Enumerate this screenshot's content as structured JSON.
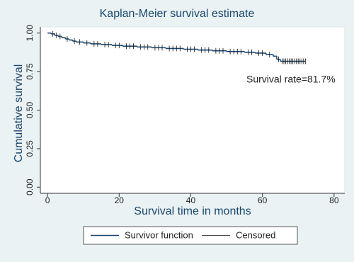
{
  "chart_data": {
    "type": "step",
    "title": "Kaplan-Meier survival estimate",
    "x_label": "Survival time in months",
    "y_label": "Cumulative survival",
    "annotation": "Survival rate=81.7%",
    "xlim": [
      -2,
      83
    ],
    "ylim": [
      -0.04,
      1.04
    ],
    "xticks": [
      0,
      20,
      40,
      60,
      80
    ],
    "yticks": [
      {
        "value": 0,
        "label": "0.00"
      },
      {
        "value": 0.25,
        "label": "0.25"
      },
      {
        "value": 0.5,
        "label": "0.50"
      },
      {
        "value": 0.75,
        "label": "0.75"
      },
      {
        "value": 1,
        "label": "1.00"
      }
    ],
    "series": [
      {
        "name": "Survivor function",
        "color": "#1a476f",
        "x": [
          0,
          1,
          2,
          3,
          4,
          5,
          6,
          7,
          8,
          10,
          12,
          15,
          18,
          21,
          25,
          29,
          33,
          38,
          42,
          46,
          50,
          55,
          58,
          61,
          63,
          64,
          65
        ],
        "values": [
          1.0,
          0.995,
          0.985,
          0.978,
          0.97,
          0.962,
          0.955,
          0.948,
          0.942,
          0.936,
          0.93,
          0.925,
          0.92,
          0.915,
          0.91,
          0.905,
          0.9,
          0.895,
          0.89,
          0.885,
          0.88,
          0.875,
          0.87,
          0.86,
          0.85,
          0.83,
          0.817
        ]
      }
    ],
    "censored": {
      "name": "Censored",
      "color": "#111111",
      "x": [
        1.5,
        2.5,
        3.5,
        5.5,
        7.5,
        9,
        11,
        13,
        14,
        16,
        17,
        19,
        20,
        22,
        23,
        24,
        26,
        27,
        28,
        30,
        31,
        32,
        34,
        35,
        36,
        37,
        39,
        40,
        41,
        43,
        44,
        45,
        47,
        48,
        49,
        51,
        52,
        53,
        54,
        56,
        57,
        59,
        60,
        62,
        64.5,
        65.5,
        66,
        66.5,
        67,
        67.5,
        68,
        68.5,
        69,
        69.5,
        70,
        70.5,
        71,
        71.5,
        72
      ]
    }
  }
}
